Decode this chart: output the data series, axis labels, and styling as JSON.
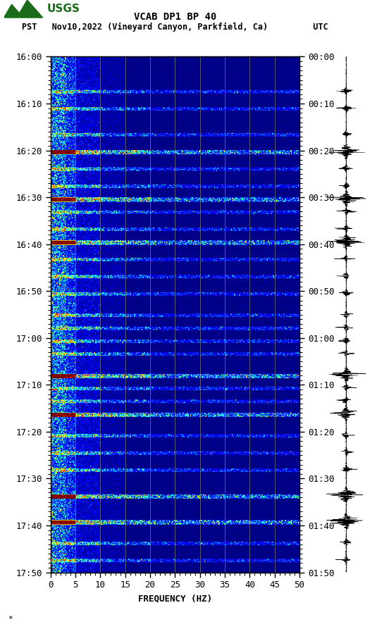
{
  "title_line1": "VCAB DP1 BP 40",
  "title_line2": "PST   Nov10,2022 (Vineyard Canyon, Parkfield, Ca)         UTC",
  "xlabel": "FREQUENCY (HZ)",
  "freq_min": 0,
  "freq_max": 50,
  "freq_ticks": [
    0,
    5,
    10,
    15,
    20,
    25,
    30,
    35,
    40,
    45,
    50
  ],
  "time_labels_left": [
    "16:00",
    "16:10",
    "16:20",
    "16:30",
    "16:40",
    "16:50",
    "17:00",
    "17:10",
    "17:20",
    "17:30",
    "17:40",
    "17:50"
  ],
  "time_labels_right": [
    "00:00",
    "00:10",
    "00:20",
    "00:30",
    "00:40",
    "00:50",
    "01:00",
    "01:10",
    "01:20",
    "01:30",
    "01:40",
    "01:50"
  ],
  "background_color": "#ffffff",
  "spectrogram_colormap": "jet",
  "vertical_lines_freq": [
    5,
    10,
    15,
    20,
    25,
    30,
    35,
    40,
    45
  ],
  "vertical_line_color": "#888866",
  "font_family": "monospace",
  "title_fontsize": 10,
  "tick_fontsize": 9,
  "xlabel_fontsize": 9,
  "usgs_color": "#1a6b1a",
  "n_time": 600,
  "n_freq": 500,
  "event_rows": [
    40,
    60,
    90,
    110,
    130,
    150,
    165,
    180,
    200,
    215,
    235,
    255,
    275,
    300,
    315,
    330,
    345,
    370,
    385,
    400,
    415,
    440,
    460,
    480,
    510,
    540,
    565,
    585
  ],
  "strong_event_rows": [
    110,
    165,
    215,
    370,
    415,
    510,
    540
  ]
}
